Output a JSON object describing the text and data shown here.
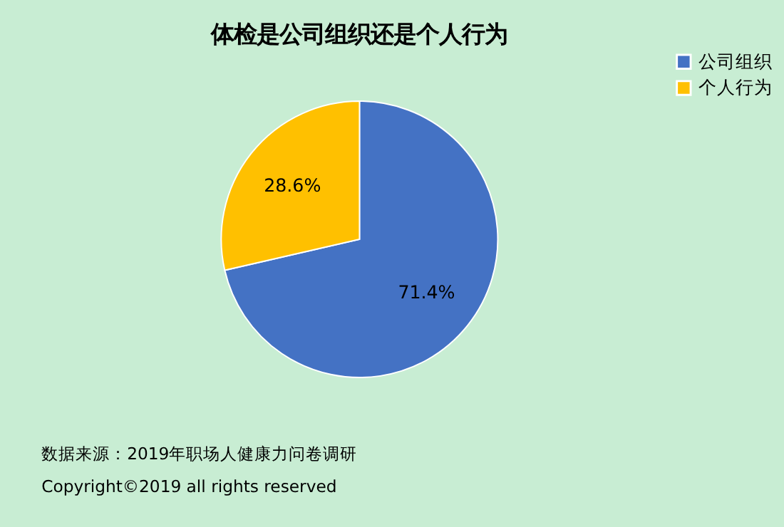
{
  "chart_data": {
    "type": "pie",
    "title": "体检是公司组织还是个人行为",
    "categories": [
      "公司组织",
      "个人行为"
    ],
    "values": [
      71.4,
      28.6
    ],
    "colors": [
      "#4472c4",
      "#ffc000"
    ],
    "value_labels": [
      "71.4%",
      "28.6%"
    ],
    "legend": "right",
    "annotations": [
      "数据来源：2019年职场人健康力问卷调研",
      "Copyright©2019 all rights reserved"
    ]
  }
}
